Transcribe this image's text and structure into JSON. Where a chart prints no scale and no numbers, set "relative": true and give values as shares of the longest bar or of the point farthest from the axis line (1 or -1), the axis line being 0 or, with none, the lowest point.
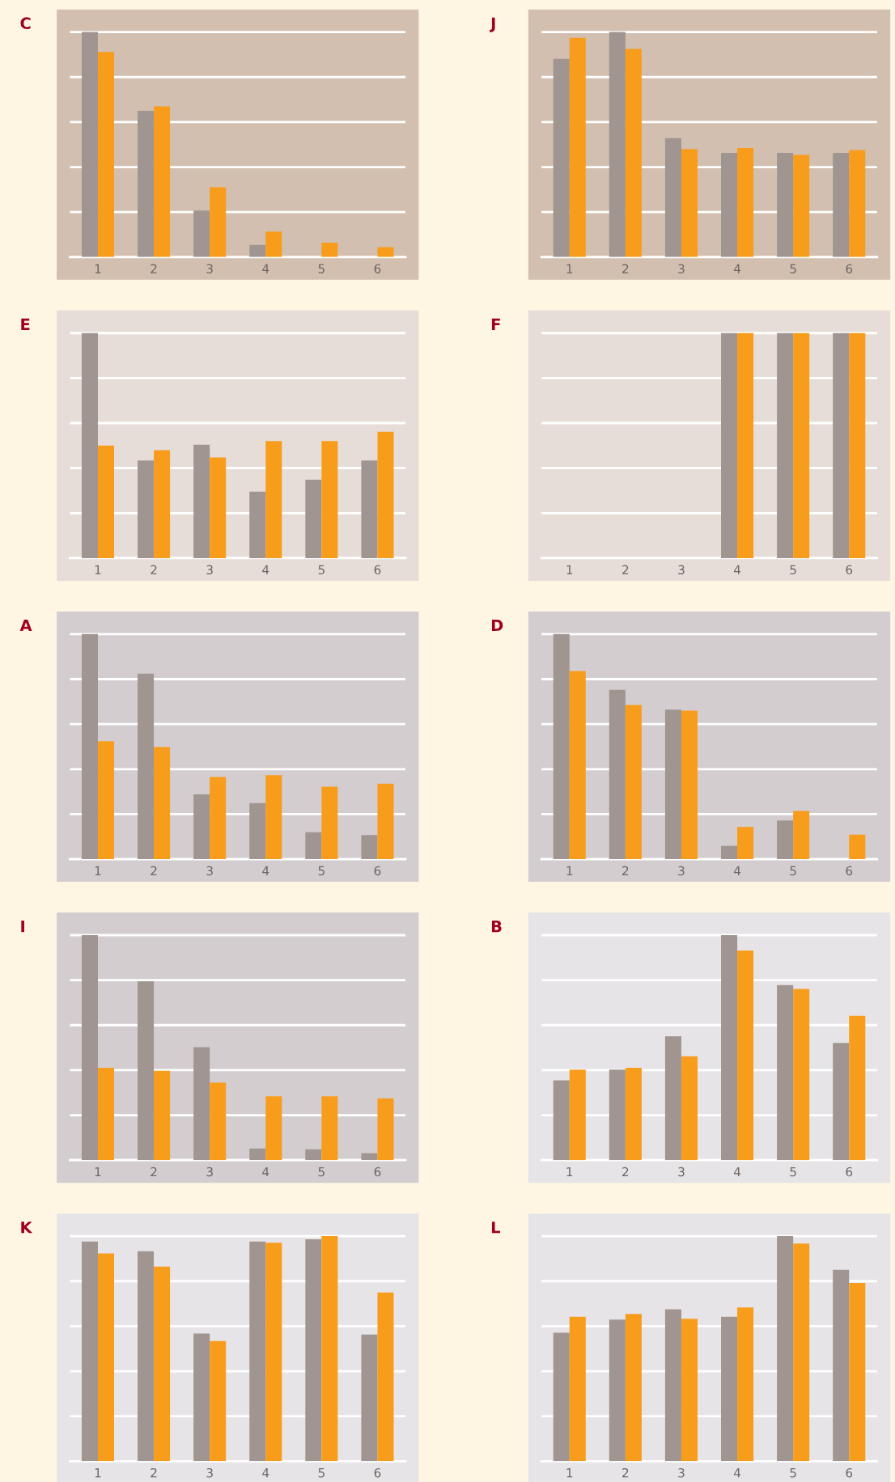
{
  "chart_data": [
    {
      "type": "bar",
      "title": "C",
      "categories": [
        "1",
        "2",
        "3",
        "4",
        "5",
        "6"
      ],
      "relative": true,
      "grid": "y",
      "tick_labels": "x",
      "series": [
        {
          "color": "#a09590",
          "values": [
            1,
            0.65,
            0.207,
            0.054,
            0,
            0
          ]
        },
        {
          "color": "#f89c1c",
          "values": [
            0.911,
            0.67,
            0.31,
            0.113,
            0.064,
            0.044
          ]
        }
      ]
    },
    {
      "type": "bar",
      "title": "J",
      "categories": [
        "1",
        "2",
        "3",
        "4",
        "5",
        "6"
      ],
      "relative": true,
      "grid": "y",
      "tick_labels": "x",
      "series": [
        {
          "color": "#a09590",
          "values": [
            0.881,
            1,
            0.529,
            0.463,
            0.463,
            0.463
          ]
        },
        {
          "color": "#f89c1c",
          "values": [
            0.974,
            0.925,
            0.48,
            0.485,
            0.454,
            0.476
          ]
        }
      ]
    },
    {
      "type": "bar",
      "title": "E",
      "categories": [
        "1",
        "2",
        "3",
        "4",
        "5",
        "6"
      ],
      "relative": true,
      "grid": "y",
      "tick_labels": "x",
      "series": [
        {
          "color": "#a09590",
          "values": [
            1,
            0.434,
            0.504,
            0.295,
            0.348,
            0.434
          ]
        },
        {
          "color": "#f89c1c",
          "values": [
            0.5,
            0.48,
            0.447,
            0.52,
            0.52,
            0.561
          ]
        }
      ]
    },
    {
      "type": "bar",
      "title": "F",
      "categories": [
        "1",
        "2",
        "3",
        "4",
        "5",
        "6"
      ],
      "relative": true,
      "grid": "y",
      "tick_labels": "x",
      "series": [
        {
          "color": "#a09590",
          "values": [
            null,
            null,
            null,
            1,
            1,
            1
          ]
        },
        {
          "color": "#f89c1c",
          "values": [
            null,
            null,
            null,
            1,
            1,
            1
          ]
        }
      ]
    },
    {
      "type": "bar",
      "title": "A",
      "categories": [
        "1",
        "2",
        "3",
        "4",
        "5",
        "6"
      ],
      "relative": true,
      "grid": "y",
      "tick_labels": "x",
      "series": [
        {
          "color": "#a09590",
          "values": [
            1,
            0.824,
            0.288,
            0.249,
            0.12,
            0.107
          ]
        },
        {
          "color": "#f89c1c",
          "values": [
            0.524,
            0.498,
            0.365,
            0.373,
            0.322,
            0.335
          ]
        }
      ]
    },
    {
      "type": "bar",
      "title": "D",
      "categories": [
        "1",
        "2",
        "3",
        "4",
        "5",
        "6"
      ],
      "relative": true,
      "grid": "y",
      "tick_labels": "x",
      "series": [
        {
          "color": "#a09590",
          "values": [
            1,
            0.752,
            0.664,
            0.059,
            0.172,
            0
          ]
        },
        {
          "color": "#f89c1c",
          "values": [
            0.836,
            0.685,
            0.66,
            0.143,
            0.214,
            0.109
          ]
        }
      ]
    },
    {
      "type": "bar",
      "title": "I",
      "categories": [
        "1",
        "2",
        "3",
        "4",
        "5",
        "6"
      ],
      "relative": true,
      "grid": "y",
      "tick_labels": "x",
      "series": [
        {
          "color": "#a09590",
          "values": [
            1,
            0.795,
            0.502,
            0.052,
            0.048,
            0.031
          ]
        },
        {
          "color": "#f89c1c",
          "values": [
            0.41,
            0.397,
            0.345,
            0.284,
            0.284,
            0.275
          ]
        }
      ]
    },
    {
      "type": "bar",
      "title": "B",
      "categories": [
        "1",
        "2",
        "3",
        "4",
        "5",
        "6"
      ],
      "relative": true,
      "grid": "y",
      "tick_labels": "x",
      "series": [
        {
          "color": "#a09590",
          "values": [
            0.355,
            0.402,
            0.551,
            1,
            0.778,
            0.521
          ]
        },
        {
          "color": "#f89c1c",
          "values": [
            0.402,
            0.41,
            0.462,
            0.932,
            0.761,
            0.641
          ]
        }
      ]
    },
    {
      "type": "bar",
      "title": "K",
      "categories": [
        "1",
        "2",
        "3",
        "4",
        "5",
        "6"
      ],
      "relative": true,
      "grid": "y",
      "tick_labels": "x",
      "series": [
        {
          "color": "#a09590",
          "values": [
            0.976,
            0.933,
            0.567,
            0.976,
            0.986,
            0.5625
          ]
        },
        {
          "color": "#f89c1c",
          "values": [
            0.923,
            0.865,
            0.534,
            0.971,
            1,
            0.75
          ]
        }
      ]
    },
    {
      "type": "bar",
      "title": "L",
      "categories": [
        "1",
        "2",
        "3",
        "4",
        "5",
        "6"
      ],
      "relative": true,
      "grid": "y",
      "tick_labels": "x",
      "series": [
        {
          "color": "#a09590",
          "values": [
            0.571,
            0.629,
            0.675,
            0.642,
            1,
            0.85
          ]
        },
        {
          "color": "#f89c1c",
          "values": [
            0.642,
            0.654,
            0.633,
            0.683,
            0.967,
            0.792
          ]
        }
      ]
    }
  ]
}
